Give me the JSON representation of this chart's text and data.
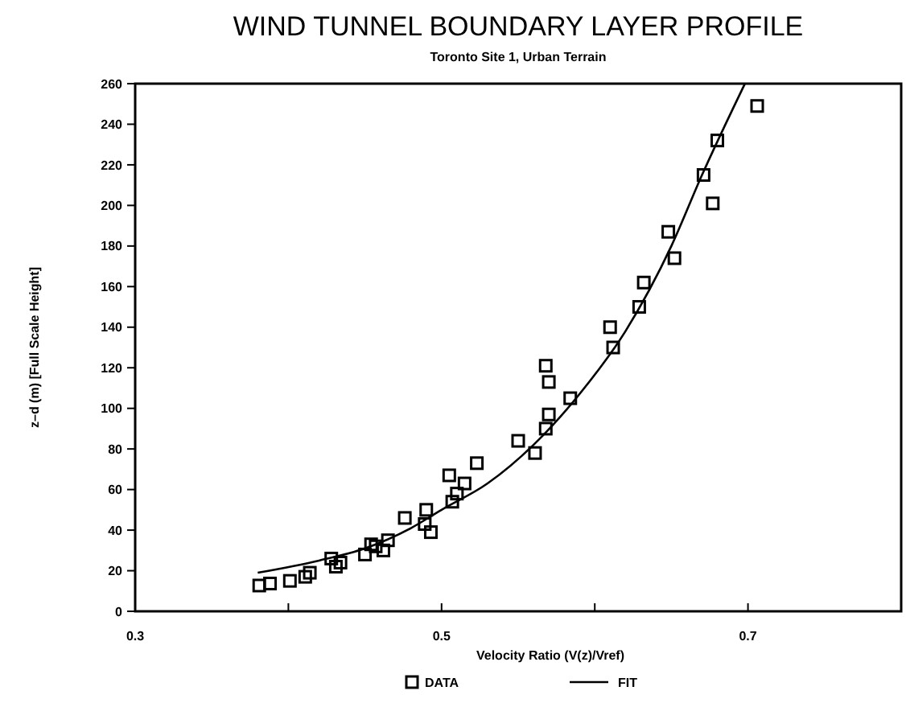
{
  "chart_data": {
    "type": "scatter",
    "title": "WIND TUNNEL BOUNDARY LAYER PROFILE",
    "subtitle": "Toronto Site 1, Urban Terrain",
    "xlabel": "Velocity Ratio (V(z)/Vref)",
    "ylabel": "z–d (m) [Full Scale Height]",
    "xlim": [
      0.3,
      0.8
    ],
    "xticks": [
      0.3,
      {
        "value": 0.4,
        "label": null
      },
      0.5,
      {
        "value": 0.6,
        "label": null
      },
      0.7
    ],
    "ylim": [
      0,
      260
    ],
    "yticks": [
      0,
      20,
      40,
      60,
      80,
      100,
      120,
      140,
      160,
      180,
      200,
      220,
      240,
      260
    ],
    "grid": false,
    "legend": "bottom",
    "series": [
      {
        "name": "DATA",
        "marker": "square",
        "color": "#000000",
        "x": [
          0.381,
          0.388,
          0.401,
          0.411,
          0.414,
          0.428,
          0.431,
          0.434,
          0.45,
          0.454,
          0.457,
          0.462,
          0.465,
          0.476,
          0.49,
          0.489,
          0.493,
          0.505,
          0.507,
          0.51,
          0.515,
          0.523,
          0.55,
          0.561,
          0.568,
          0.57,
          0.584,
          0.57,
          0.568,
          0.61,
          0.612,
          0.632,
          0.629,
          0.648,
          0.652,
          0.671,
          0.677,
          0.68,
          0.706
        ],
        "values": [
          12.7,
          13.7,
          15,
          17,
          19,
          26,
          22,
          24,
          28,
          33,
          32,
          30,
          35,
          46,
          50,
          43,
          39,
          67,
          54,
          58,
          63,
          73,
          84,
          78,
          121,
          113,
          105,
          97,
          90,
          140,
          130,
          162,
          150,
          187,
          174,
          215,
          201,
          232,
          249
        ]
      },
      {
        "name": "FIT",
        "type": "line",
        "marker": "none",
        "line_style": "solid",
        "color": "#000000",
        "x": [
          0.38,
          0.42,
          0.45,
          0.48,
          0.5,
          0.53,
          0.56,
          0.59,
          0.62,
          0.65,
          0.67,
          0.698
        ],
        "values": [
          19,
          25,
          31,
          41,
          50,
          63,
          82,
          107,
          138,
          180,
          215,
          260
        ]
      }
    ]
  }
}
